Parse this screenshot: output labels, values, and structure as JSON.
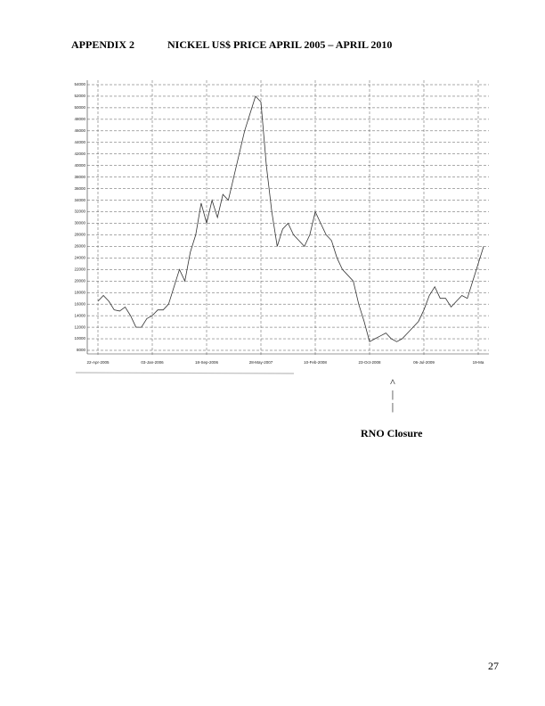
{
  "header": {
    "label": "APPENDIX 2",
    "title": "NICKEL US$ PRICE APRIL 2005 – APRIL 2010"
  },
  "chart_data": {
    "type": "line",
    "categories": [
      "22-Apr-2005",
      null,
      null,
      null,
      null,
      null,
      null,
      null,
      null,
      null,
      "03-Jan-2006",
      null,
      null,
      null,
      null,
      null,
      null,
      null,
      null,
      null,
      "18-Sep-2006",
      null,
      null,
      null,
      null,
      null,
      null,
      null,
      null,
      null,
      "28-May-2007",
      null,
      null,
      null,
      null,
      null,
      null,
      null,
      null,
      null,
      "10-Feb-2008",
      null,
      null,
      null,
      null,
      null,
      null,
      null,
      null,
      null,
      "23-Oct-2008",
      null,
      null,
      null,
      null,
      null,
      null,
      null,
      null,
      null,
      "06-Jul-2009",
      null,
      null,
      null,
      null,
      null,
      null,
      null,
      null,
      null,
      "19-Ma",
      null
    ],
    "values": [
      16500,
      17500,
      16500,
      15000,
      14800,
      15500,
      14000,
      12000,
      12000,
      13500,
      14000,
      15000,
      15000,
      16000,
      19000,
      22000,
      20000,
      25000,
      28000,
      33500,
      30000,
      34000,
      31000,
      35000,
      34000,
      38000,
      42000,
      46000,
      49000,
      52000,
      51000,
      40000,
      32000,
      26000,
      29000,
      30000,
      28000,
      27000,
      26000,
      28000,
      32000,
      30000,
      28000,
      27000,
      24000,
      22000,
      21000,
      20000,
      16000,
      13000,
      9500,
      10000,
      10500,
      11000,
      10000,
      9500,
      10000,
      11000,
      12000,
      13000,
      15000,
      17500,
      19000,
      17000,
      17000,
      15500,
      16500,
      17500,
      17000,
      20000,
      23000,
      26000
    ],
    "color": "#333333",
    "ylim": [
      8000,
      54000
    ],
    "yticks": [
      8000,
      10000,
      12000,
      14000,
      16000,
      18000,
      20000,
      22000,
      24000,
      26000,
      28000,
      30000,
      32000,
      34000,
      36000,
      38000,
      40000,
      42000,
      44000,
      46000,
      48000,
      50000,
      52000,
      54000
    ],
    "grid": true
  },
  "annotation": {
    "arrow_head": "^",
    "arrow_shaft_1": "|",
    "arrow_shaft_2": "|",
    "text": "RNO Closure"
  },
  "page_number": "27"
}
